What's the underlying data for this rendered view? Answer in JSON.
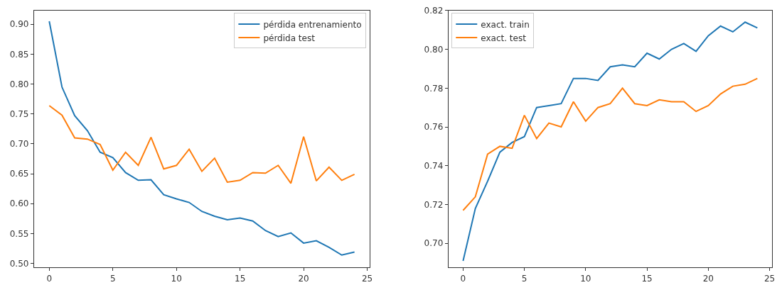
{
  "chart_data": [
    {
      "type": "line",
      "x": [
        0,
        1,
        2,
        3,
        4,
        5,
        6,
        7,
        8,
        9,
        10,
        11,
        12,
        13,
        14,
        15,
        16,
        17,
        18,
        19,
        20,
        21,
        22,
        23,
        24
      ],
      "series": [
        {
          "name": "pérdida entrenamiento",
          "color": "#1f77b4",
          "values": [
            0.905,
            0.795,
            0.747,
            0.722,
            0.686,
            0.677,
            0.652,
            0.639,
            0.64,
            0.615,
            0.608,
            0.602,
            0.587,
            0.579,
            0.573,
            0.576,
            0.571,
            0.555,
            0.545,
            0.551,
            0.534,
            0.538,
            0.527,
            0.514,
            0.519
          ]
        },
        {
          "name": "pérdida test",
          "color": "#ff7f0e",
          "values": [
            0.764,
            0.748,
            0.71,
            0.708,
            0.699,
            0.656,
            0.686,
            0.664,
            0.711,
            0.658,
            0.664,
            0.691,
            0.654,
            0.676,
            0.636,
            0.639,
            0.652,
            0.651,
            0.664,
            0.634,
            0.712,
            0.638,
            0.661,
            0.639,
            0.649
          ]
        }
      ],
      "xlim": [
        -1.2,
        25.2
      ],
      "xticks": [
        0,
        5,
        10,
        15,
        20,
        25
      ],
      "ylim": [
        0.493,
        0.923
      ],
      "yticks": [
        {
          "value": 0.5,
          "label": "0.50"
        },
        {
          "value": 0.55,
          "label": "0.55"
        },
        {
          "value": 0.6,
          "label": "0.60"
        },
        {
          "value": 0.65,
          "label": "0.65"
        },
        {
          "value": 0.7,
          "label": "0.70"
        },
        {
          "value": 0.75,
          "label": "0.75"
        },
        {
          "value": 0.8,
          "label": "0.80"
        },
        {
          "value": 0.85,
          "label": "0.85"
        },
        {
          "value": 0.9,
          "label": "0.90"
        }
      ],
      "legend": "top right",
      "line_style": "solid",
      "marker": "none"
    },
    {
      "type": "line",
      "x": [
        0,
        1,
        2,
        3,
        4,
        5,
        6,
        7,
        8,
        9,
        10,
        11,
        12,
        13,
        14,
        15,
        16,
        17,
        18,
        19,
        20,
        21,
        22,
        23,
        24
      ],
      "series": [
        {
          "name": "exact. train",
          "color": "#1f77b4",
          "values": [
            0.691,
            0.718,
            0.732,
            0.747,
            0.752,
            0.755,
            0.77,
            0.771,
            0.772,
            0.785,
            0.785,
            0.784,
            0.791,
            0.792,
            0.791,
            0.798,
            0.795,
            0.8,
            0.803,
            0.799,
            0.807,
            0.812,
            0.809,
            0.814,
            0.811
          ]
        },
        {
          "name": "exact. test",
          "color": "#ff7f0e",
          "values": [
            0.717,
            0.724,
            0.746,
            0.75,
            0.749,
            0.766,
            0.754,
            0.762,
            0.76,
            0.773,
            0.763,
            0.77,
            0.772,
            0.78,
            0.772,
            0.771,
            0.774,
            0.773,
            0.773,
            0.768,
            0.771,
            0.777,
            0.781,
            0.782,
            0.785
          ]
        }
      ],
      "xlim": [
        -1.2,
        25.2
      ],
      "xticks": [
        0,
        5,
        10,
        15,
        20,
        25
      ],
      "ylim": [
        0.6875,
        0.82
      ],
      "yticks": [
        {
          "value": 0.7,
          "label": "0.70"
        },
        {
          "value": 0.72,
          "label": "0.72"
        },
        {
          "value": 0.74,
          "label": "0.74"
        },
        {
          "value": 0.76,
          "label": "0.76"
        },
        {
          "value": 0.78,
          "label": "0.78"
        },
        {
          "value": 0.8,
          "label": "0.80"
        },
        {
          "value": 0.82,
          "label": "0.82"
        }
      ],
      "legend": "top left",
      "line_style": "solid",
      "marker": "none"
    }
  ]
}
